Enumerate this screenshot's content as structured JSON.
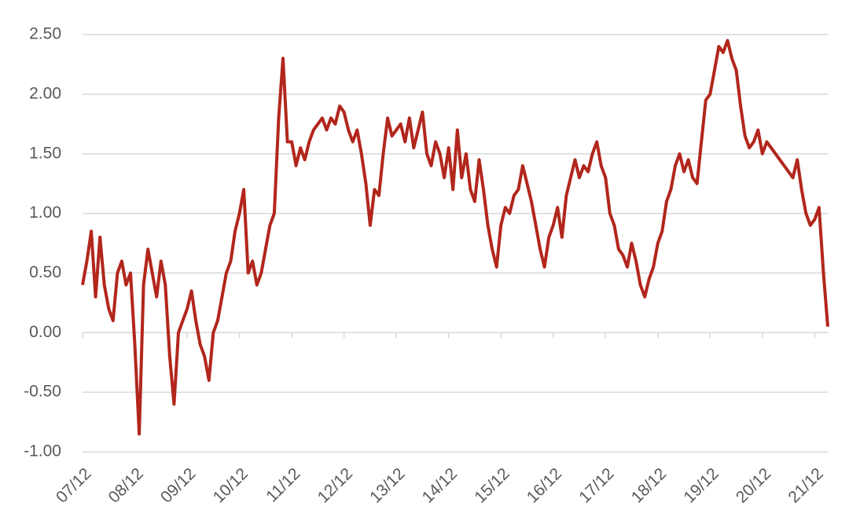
{
  "chart_data": {
    "type": "line",
    "categories": [
      "07/12",
      null,
      null,
      null,
      null,
      null,
      null,
      null,
      null,
      null,
      null,
      null,
      "08/12",
      null,
      null,
      null,
      null,
      null,
      null,
      null,
      null,
      null,
      null,
      null,
      "09/12",
      null,
      null,
      null,
      null,
      null,
      null,
      null,
      null,
      null,
      null,
      null,
      "10/12",
      null,
      null,
      null,
      null,
      null,
      null,
      null,
      null,
      null,
      null,
      null,
      "11/12",
      null,
      null,
      null,
      null,
      null,
      null,
      null,
      null,
      null,
      null,
      null,
      "12/12",
      null,
      null,
      null,
      null,
      null,
      null,
      null,
      null,
      null,
      null,
      null,
      "13/12",
      null,
      null,
      null,
      null,
      null,
      null,
      null,
      null,
      null,
      null,
      null,
      "14/12",
      null,
      null,
      null,
      null,
      null,
      null,
      null,
      null,
      null,
      null,
      null,
      "15/12",
      null,
      null,
      null,
      null,
      null,
      null,
      null,
      null,
      null,
      null,
      null,
      "16/12",
      null,
      null,
      null,
      null,
      null,
      null,
      null,
      null,
      null,
      null,
      null,
      "17/12",
      null,
      null,
      null,
      null,
      null,
      null,
      null,
      null,
      null,
      null,
      null,
      "18/12",
      null,
      null,
      null,
      null,
      null,
      null,
      null,
      null,
      null,
      null,
      null,
      "19/12",
      null,
      null,
      null,
      null,
      null,
      null,
      null,
      null,
      null,
      null,
      null,
      "20/12",
      null,
      null,
      null,
      null,
      null,
      null,
      null,
      null,
      null,
      null,
      null,
      "21/12",
      null,
      null,
      null
    ],
    "series": [
      {
        "color": "#b2261c",
        "values": [
          0.4,
          0.6,
          0.85,
          0.3,
          0.8,
          0.4,
          0.2,
          0.1,
          0.5,
          0.6,
          0.4,
          0.5,
          -0.1,
          -0.85,
          0.4,
          0.7,
          0.5,
          0.3,
          0.6,
          0.4,
          -0.2,
          -0.6,
          0.0,
          0.1,
          0.2,
          0.35,
          0.1,
          -0.1,
          -0.2,
          -0.4,
          0.0,
          0.1,
          0.3,
          0.5,
          0.6,
          0.85,
          1.0,
          1.2,
          0.5,
          0.6,
          0.4,
          0.5,
          0.7,
          0.9,
          1.0,
          1.8,
          2.3,
          1.6,
          1.6,
          1.4,
          1.55,
          1.45,
          1.6,
          1.7,
          1.75,
          1.8,
          1.7,
          1.8,
          1.75,
          1.9,
          1.85,
          1.7,
          1.6,
          1.7,
          1.5,
          1.25,
          0.9,
          1.2,
          1.15,
          1.5,
          1.8,
          1.65,
          1.7,
          1.75,
          1.6,
          1.8,
          1.55,
          1.7,
          1.85,
          1.5,
          1.4,
          1.6,
          1.5,
          1.3,
          1.55,
          1.2,
          1.7,
          1.3,
          1.5,
          1.2,
          1.1,
          1.45,
          1.2,
          0.9,
          0.7,
          0.55,
          0.9,
          1.05,
          1.0,
          1.15,
          1.2,
          1.4,
          1.25,
          1.1,
          0.9,
          0.7,
          0.55,
          0.8,
          0.9,
          1.05,
          0.8,
          1.15,
          1.3,
          1.45,
          1.3,
          1.4,
          1.35,
          1.5,
          1.6,
          1.4,
          1.3,
          1.0,
          0.9,
          0.7,
          0.65,
          0.55,
          0.75,
          0.6,
          0.4,
          0.3,
          0.45,
          0.55,
          0.75,
          0.85,
          1.1,
          1.2,
          1.4,
          1.5,
          1.35,
          1.45,
          1.3,
          1.25,
          1.6,
          1.95,
          2.0,
          2.2,
          2.4,
          2.35,
          2.45,
          2.3,
          2.2,
          1.9,
          1.65,
          1.55,
          1.6,
          1.7,
          1.5,
          1.6,
          1.55,
          1.5,
          1.45,
          1.4,
          1.35,
          1.3,
          1.45,
          1.2,
          1.0,
          0.9,
          0.95,
          1.05,
          0.5,
          0.05
        ]
      }
    ],
    "ylim": [
      -1,
      2.5
    ],
    "yticks": [
      {
        "value": -1,
        "label": "-1.00"
      },
      {
        "value": -0.5,
        "label": "-0.50"
      },
      {
        "value": 0,
        "label": "0.00"
      },
      {
        "value": 0.5,
        "label": "0.50"
      },
      {
        "value": 1,
        "label": "1.00"
      },
      {
        "value": 1.5,
        "label": "1.50"
      },
      {
        "value": 2,
        "label": "2.00"
      },
      {
        "value": 2.5,
        "label": "2.50"
      }
    ],
    "grid": true
  }
}
